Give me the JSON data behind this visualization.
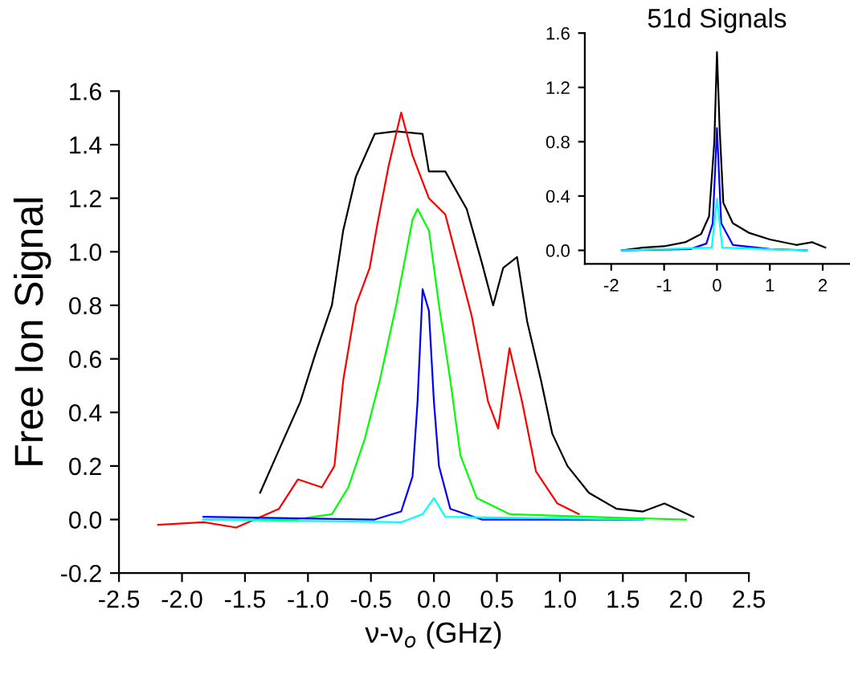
{
  "chart_data": [
    {
      "type": "line",
      "xlabel": "ν-ν$_{o}$ (GHz)",
      "ylabel": "Free Ion Signal",
      "xlim": [
        -2.5,
        2.5
      ],
      "ylim": [
        -0.2,
        1.6
      ],
      "xticks": [
        {
          "value": -2.5,
          "label": "-2.5"
        },
        {
          "value": -2.0,
          "label": "-2.0"
        },
        {
          "value": -1.5,
          "label": "-1.5"
        },
        {
          "value": -1.0,
          "label": "-1.0"
        },
        {
          "value": -0.5,
          "label": "-0.5"
        },
        {
          "value": 0.0,
          "label": "0.0"
        },
        {
          "value": 0.5,
          "label": "0.5"
        },
        {
          "value": 1.0,
          "label": "1.0"
        },
        {
          "value": 1.5,
          "label": "1.5"
        },
        {
          "value": 2.0,
          "label": "2.0"
        },
        {
          "value": 2.5,
          "label": "2.5"
        }
      ],
      "yticks": [
        {
          "value": -0.2,
          "label": "-0.2"
        },
        {
          "value": 0.0,
          "label": "0.0"
        },
        {
          "value": 0.2,
          "label": "0.2"
        },
        {
          "value": 0.4,
          "label": "0.4"
        },
        {
          "value": 0.6,
          "label": "0.6"
        },
        {
          "value": 0.8,
          "label": "0.8"
        },
        {
          "value": 1.0,
          "label": "1.0"
        },
        {
          "value": 1.2,
          "label": "1.2"
        },
        {
          "value": 1.4,
          "label": "1.4"
        },
        {
          "value": 1.6,
          "label": "1.6"
        }
      ],
      "grid": false,
      "legend": false,
      "line_style": "solid",
      "marker": "none",
      "series": [
        {
          "color": "#000000",
          "x": [
            -1.38,
            -1.23,
            -1.06,
            -0.94,
            -0.81,
            -0.72,
            -0.62,
            -0.47,
            -0.3,
            -0.09,
            -0.04,
            0.09,
            0.26,
            0.38,
            0.47,
            0.55,
            0.66,
            0.74,
            0.85,
            0.94,
            1.06,
            1.23,
            1.45,
            1.66,
            1.83,
            2.06
          ],
          "values": [
            0.1,
            0.26,
            0.44,
            0.62,
            0.8,
            1.08,
            1.28,
            1.44,
            1.45,
            1.44,
            1.3,
            1.3,
            1.16,
            0.96,
            0.8,
            0.94,
            0.98,
            0.74,
            0.52,
            0.32,
            0.2,
            0.1,
            0.04,
            0.03,
            0.06,
            0.01
          ]
        },
        {
          "color": "#ff0000",
          "x": [
            -2.19,
            -1.83,
            -1.57,
            -1.23,
            -1.08,
            -0.89,
            -0.79,
            -0.72,
            -0.62,
            -0.51,
            -0.45,
            -0.36,
            -0.26,
            -0.17,
            -0.04,
            0.09,
            0.19,
            0.3,
            0.43,
            0.51,
            0.6,
            0.7,
            0.81,
            0.98,
            1.15
          ],
          "values": [
            -0.02,
            -0.01,
            -0.03,
            0.04,
            0.15,
            0.12,
            0.2,
            0.52,
            0.8,
            0.94,
            1.1,
            1.32,
            1.52,
            1.36,
            1.2,
            1.14,
            0.96,
            0.76,
            0.44,
            0.34,
            0.64,
            0.44,
            0.18,
            0.06,
            0.02
          ]
        },
        {
          "color": "#00ff00",
          "x": [
            -1.83,
            -1.11,
            -0.81,
            -0.68,
            -0.55,
            -0.43,
            -0.3,
            -0.17,
            -0.13,
            -0.04,
            0.04,
            0.13,
            0.21,
            0.34,
            0.6,
            1.23,
            2.0
          ],
          "values": [
            0.0,
            0.0,
            0.02,
            0.12,
            0.3,
            0.52,
            0.8,
            1.12,
            1.16,
            1.08,
            0.8,
            0.52,
            0.24,
            0.08,
            0.02,
            0.01,
            0.0
          ]
        },
        {
          "color": "#0000ff",
          "x": [
            -1.83,
            -0.47,
            -0.26,
            -0.17,
            -0.13,
            -0.09,
            -0.04,
            0.0,
            0.04,
            0.13,
            0.38,
            1.66
          ],
          "values": [
            0.01,
            0.0,
            0.03,
            0.16,
            0.44,
            0.86,
            0.78,
            0.44,
            0.2,
            0.04,
            0.0,
            0.0
          ]
        },
        {
          "color": "#00ffff",
          "x": [
            -1.83,
            -0.26,
            -0.09,
            0.0,
            0.09,
            1.66
          ],
          "values": [
            0.0,
            -0.01,
            0.02,
            0.08,
            0.01,
            0.0
          ]
        }
      ]
    },
    {
      "type": "line",
      "title": "51d Signals",
      "xlim": [
        -2.5,
        2.5
      ],
      "ylim": [
        -0.1,
        1.6
      ],
      "xticks": [
        -2,
        -1,
        0,
        1,
        2
      ],
      "yticks": [
        {
          "value": 0.0,
          "label": "0.0"
        },
        {
          "value": 0.4,
          "label": "0.4"
        },
        {
          "value": 0.8,
          "label": "0.8"
        },
        {
          "value": 1.2,
          "label": "1.2"
        },
        {
          "value": 1.6,
          "label": "1.6"
        }
      ],
      "grid": false,
      "legend": false,
      "line_style": "solid",
      "marker": "none",
      "series": [
        {
          "color": "#000000",
          "x": [
            -1.8,
            -1.4,
            -1.0,
            -0.6,
            -0.3,
            -0.15,
            -0.05,
            0.0,
            0.05,
            0.12,
            0.3,
            0.6,
            1.0,
            1.5,
            1.8,
            2.05
          ],
          "values": [
            0.0,
            0.02,
            0.03,
            0.06,
            0.12,
            0.25,
            0.8,
            1.46,
            0.9,
            0.35,
            0.2,
            0.13,
            0.08,
            0.04,
            0.06,
            0.02
          ]
        },
        {
          "color": "#0000ff",
          "x": [
            -1.8,
            -0.5,
            -0.2,
            -0.08,
            0.0,
            0.08,
            0.3,
            1.0,
            1.7
          ],
          "values": [
            0.0,
            0.01,
            0.05,
            0.2,
            0.9,
            0.2,
            0.04,
            0.01,
            0.0
          ]
        },
        {
          "color": "#00ffff",
          "x": [
            -1.8,
            -0.1,
            0.0,
            0.1,
            1.7
          ],
          "values": [
            0.0,
            0.02,
            0.38,
            0.02,
            0.0
          ]
        }
      ]
    }
  ]
}
